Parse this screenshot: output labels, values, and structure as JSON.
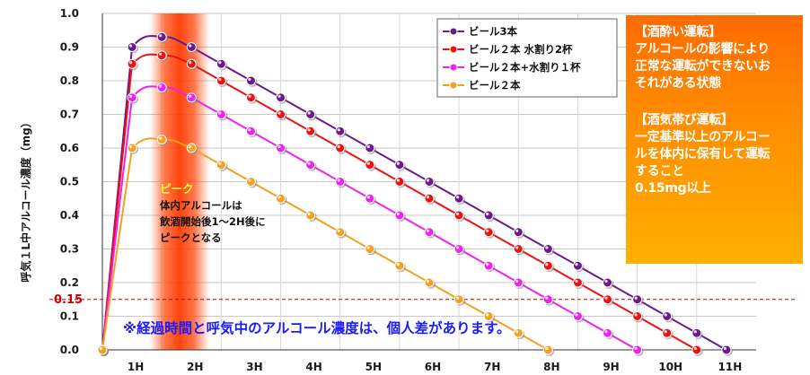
{
  "chart_data": {
    "type": "line",
    "ylabel": "呼気１L中アルコール濃度（mg）",
    "ylim": [
      0,
      1.0
    ],
    "yticks": [
      "0.0",
      "0.1",
      "0.2",
      "0.3",
      "0.4",
      "0.5",
      "0.6",
      "0.7",
      "0.8",
      "0.9",
      "1.0"
    ],
    "xlim": [
      0,
      11
    ],
    "xticks": [
      {
        "x": 0.5,
        "label": "1H"
      },
      {
        "x": 1.5,
        "label": "2H"
      },
      {
        "x": 2.5,
        "label": "3H"
      },
      {
        "x": 3.5,
        "label": "4H"
      },
      {
        "x": 4.5,
        "label": "5H"
      },
      {
        "x": 5.5,
        "label": "6H"
      },
      {
        "x": 6.5,
        "label": "7H"
      },
      {
        "x": 7.5,
        "label": "8H"
      },
      {
        "x": 8.5,
        "label": "9H"
      },
      {
        "x": 9.5,
        "label": "10H"
      },
      {
        "x": 10.5,
        "label": "11H"
      }
    ],
    "grid": true,
    "legend_position": "top-right",
    "series": [
      {
        "name": "ビール3本",
        "color": "#6b1a8c",
        "points": [
          [
            0,
            0
          ],
          [
            0.5,
            0.9
          ],
          [
            1.0,
            0.93
          ],
          [
            1.5,
            0.9
          ],
          [
            2.0,
            0.85
          ],
          [
            2.5,
            0.8
          ],
          [
            3.0,
            0.75
          ],
          [
            3.5,
            0.7
          ],
          [
            4.0,
            0.65
          ],
          [
            4.5,
            0.6
          ],
          [
            5.0,
            0.55
          ],
          [
            5.5,
            0.5
          ],
          [
            6.0,
            0.45
          ],
          [
            6.5,
            0.4
          ],
          [
            7.0,
            0.35
          ],
          [
            7.5,
            0.3
          ],
          [
            8.0,
            0.25
          ],
          [
            8.5,
            0.2
          ],
          [
            9.0,
            0.15
          ],
          [
            9.5,
            0.1
          ],
          [
            10.0,
            0.05
          ],
          [
            10.5,
            0.0
          ]
        ]
      },
      {
        "name": "ビール２本 水割り2杯",
        "color": "#ee1111",
        "points": [
          [
            0,
            0
          ],
          [
            0.5,
            0.85
          ],
          [
            1.0,
            0.875
          ],
          [
            1.5,
            0.85
          ],
          [
            2.0,
            0.8
          ],
          [
            2.5,
            0.75
          ],
          [
            3.0,
            0.7
          ],
          [
            3.5,
            0.65
          ],
          [
            4.0,
            0.6
          ],
          [
            4.5,
            0.55
          ],
          [
            5.0,
            0.5
          ],
          [
            5.5,
            0.45
          ],
          [
            6.0,
            0.4
          ],
          [
            6.5,
            0.35
          ],
          [
            7.0,
            0.3
          ],
          [
            7.5,
            0.25
          ],
          [
            8.0,
            0.2
          ],
          [
            8.5,
            0.15
          ],
          [
            9.0,
            0.1
          ],
          [
            9.5,
            0.05
          ],
          [
            10.0,
            0.0
          ]
        ]
      },
      {
        "name": "ビール２本+水割り１杯",
        "color": "#ee22ee",
        "points": [
          [
            0,
            0
          ],
          [
            0.5,
            0.75
          ],
          [
            1.0,
            0.78
          ],
          [
            1.5,
            0.75
          ],
          [
            2.0,
            0.7
          ],
          [
            2.5,
            0.65
          ],
          [
            3.0,
            0.6
          ],
          [
            3.5,
            0.55
          ],
          [
            4.0,
            0.5
          ],
          [
            4.5,
            0.45
          ],
          [
            5.0,
            0.4
          ],
          [
            5.5,
            0.35
          ],
          [
            6.0,
            0.3
          ],
          [
            6.5,
            0.25
          ],
          [
            7.0,
            0.2
          ],
          [
            7.5,
            0.15
          ],
          [
            8.0,
            0.1
          ],
          [
            8.5,
            0.05
          ],
          [
            9.0,
            0.0
          ]
        ]
      },
      {
        "name": "ビール２本",
        "color": "#f4a020",
        "points": [
          [
            0,
            0
          ],
          [
            0.5,
            0.6
          ],
          [
            1.0,
            0.625
          ],
          [
            1.5,
            0.6
          ],
          [
            2.0,
            0.55
          ],
          [
            2.5,
            0.5
          ],
          [
            3.0,
            0.45
          ],
          [
            3.5,
            0.4
          ],
          [
            4.0,
            0.35
          ],
          [
            4.5,
            0.3
          ],
          [
            5.0,
            0.25
          ],
          [
            5.5,
            0.2
          ],
          [
            6.0,
            0.15
          ],
          [
            6.5,
            0.1
          ],
          [
            7.0,
            0.05
          ],
          [
            7.5,
            0.0
          ]
        ]
      }
    ],
    "threshold": {
      "value": 0.15,
      "label": "0.15",
      "color": "#cc0000"
    },
    "peak_band": {
      "from": 0.8,
      "to": 1.8,
      "color": "#ff4400"
    },
    "annotations": {
      "peak_title": "ピーク",
      "peak_lines": [
        "体内アルコールは",
        "飲酒開始後1～2H後に",
        "ピークとなる"
      ],
      "bottom_note": "※経過時間と呼気中のアルコール濃度は、個人差があります。"
    }
  },
  "info_box": {
    "lines": [
      "【酒酔い運転】",
      "アルコールの影響により",
      "正常な運転ができないお",
      "それがある状態",
      "",
      "【酒気帯び運転】",
      "一定基準以上のアルコー",
      "ルを体内に保有して運転",
      "すること",
      "0.15mg以上"
    ]
  }
}
